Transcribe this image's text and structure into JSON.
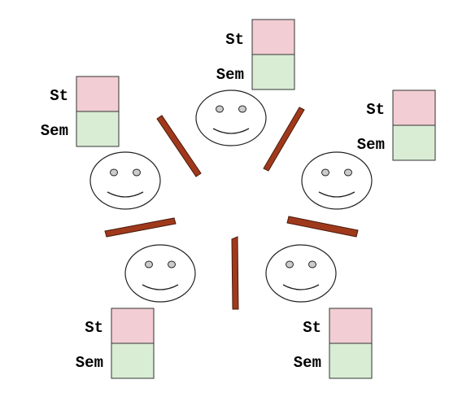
{
  "labels": {
    "top": "St",
    "bottom": "Sem"
  },
  "colors": {
    "top_box": "#f2cdd3",
    "bottom_box": "#d9ecd4",
    "box_border": "#333333",
    "face_outline": "#222222",
    "eye_fill": "#cccccc",
    "divider": "#a0391c",
    "divider_edge": "#4a1a0c"
  },
  "agents": [
    {
      "id": "agent-top",
      "st_label": "St",
      "sem_label": "Sem"
    },
    {
      "id": "agent-upper-left",
      "st_label": "St",
      "sem_label": "Sem"
    },
    {
      "id": "agent-upper-right",
      "st_label": "St",
      "sem_label": "Sem"
    },
    {
      "id": "agent-lower-left",
      "st_label": "St",
      "sem_label": "Sem"
    },
    {
      "id": "agent-lower-right",
      "st_label": "St",
      "sem_label": "Sem"
    }
  ],
  "dividers": 5
}
